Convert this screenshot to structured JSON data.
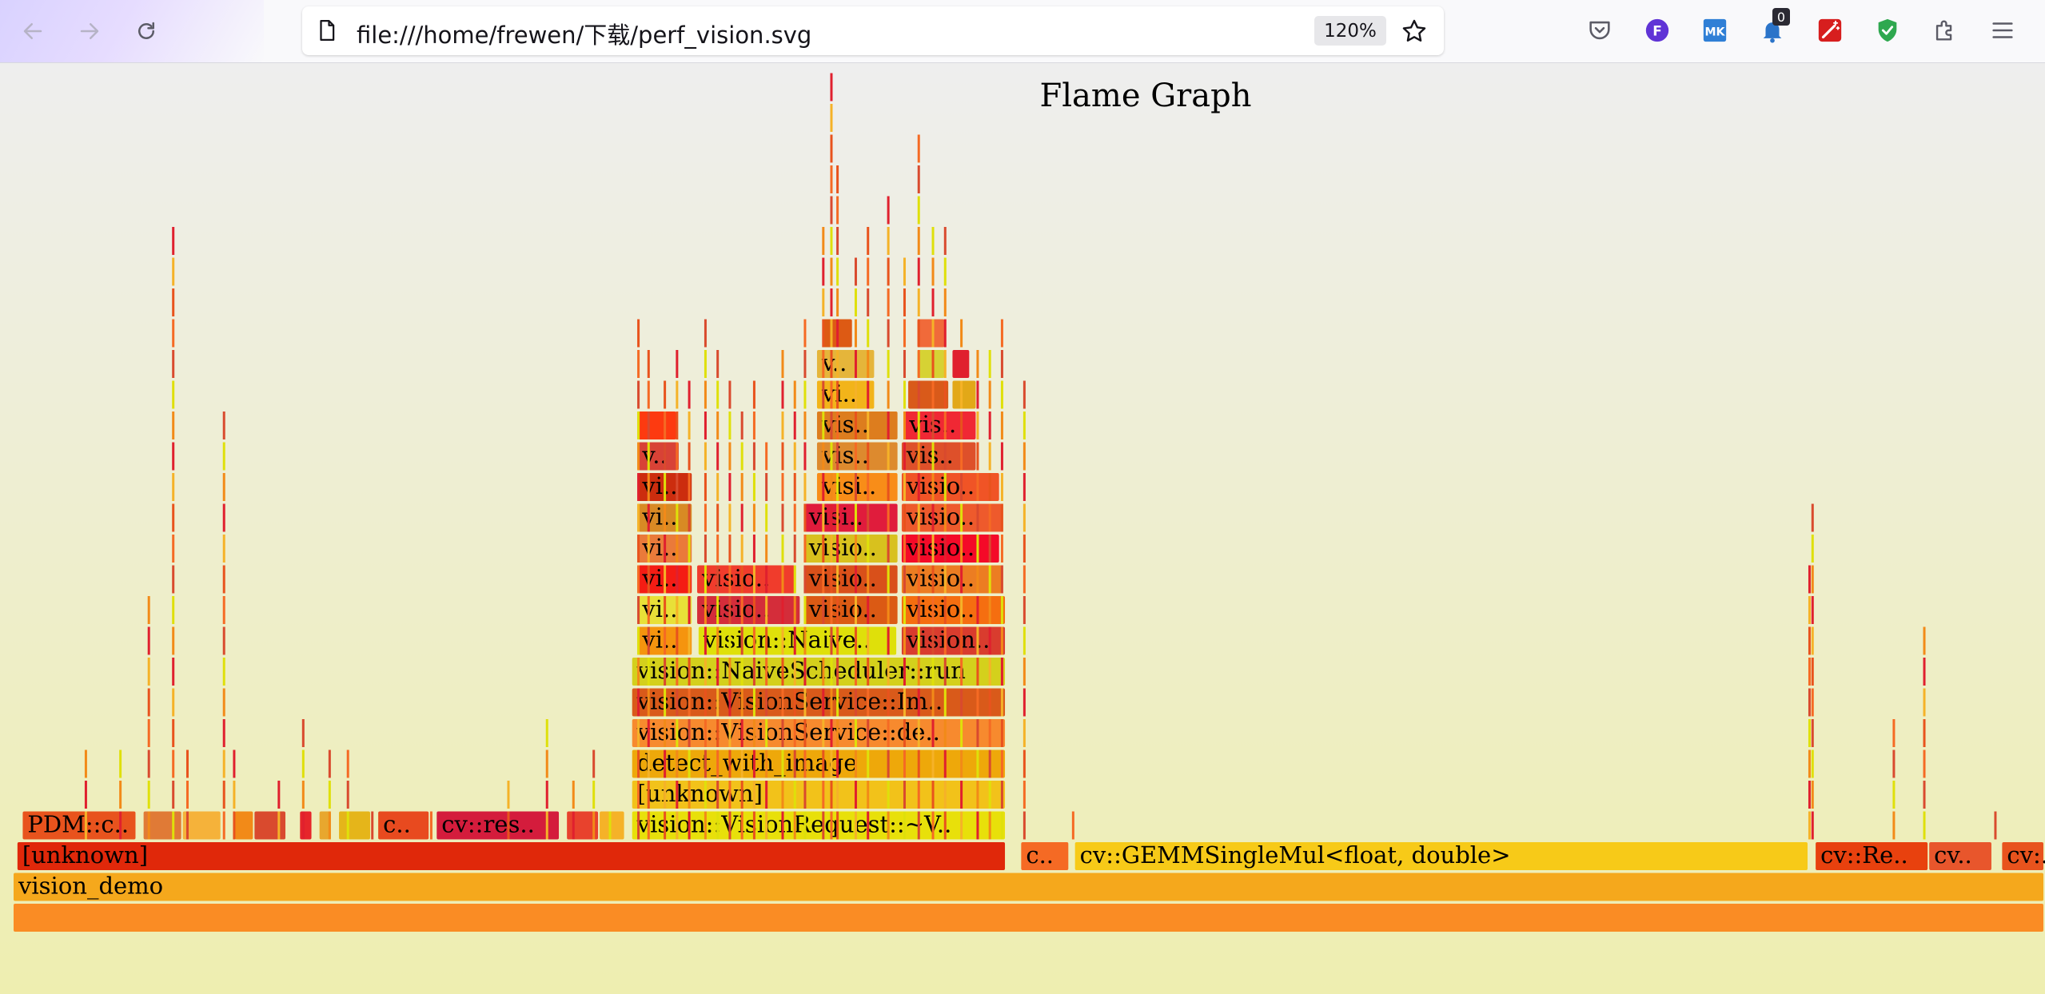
{
  "browser": {
    "url": "file:///home/frewen/下载/perf_vision.svg",
    "zoom": "120%",
    "notification_count": "0",
    "back_icon": "back-arrow-icon",
    "forward_icon": "forward-arrow-icon",
    "reload_icon": "reload-icon",
    "page_icon": "page-icon",
    "bookmark_icon": "star-icon",
    "toolbar_icons": [
      "pocket-icon",
      "firefox-account-icon",
      "extension-mk-icon",
      "notification-icon",
      "magic-wand-icon",
      "shield-check-icon",
      "extensions-puzzle-icon",
      "menu-icon"
    ],
    "colors": {
      "firefox_account": "#6034d6",
      "mk": "#2f7fd6",
      "notification": "#2b74c9",
      "wand": "#d71e1e",
      "shield": "#2fa84f"
    }
  },
  "flamegraph": {
    "title": "Flame Graph",
    "frames": [
      {
        "label": "",
        "row": 0,
        "start": 0.0,
        "end": 1.0,
        "color": "#fa8c24"
      },
      {
        "label": "vision_demo",
        "row": 1,
        "start": 0.0,
        "end": 1.0,
        "color": "#f5a81c"
      },
      {
        "label": "[unknown]",
        "row": 2,
        "start": 0.0019,
        "end": 0.4888,
        "color": "#e0280a"
      },
      {
        "label": "c..",
        "row": 2,
        "start": 0.496,
        "end": 0.52,
        "color": "#f56a24"
      },
      {
        "label": "cv::GEMMSingleMul<float, double>",
        "row": 2,
        "start": 0.5225,
        "end": 0.8839,
        "color": "#f7ca18"
      },
      {
        "label": "cv::Re..",
        "row": 2,
        "start": 0.8871,
        "end": 0.943,
        "color": "#e8410e"
      },
      {
        "label": "cv..",
        "row": 2,
        "start": 0.943,
        "end": 0.9744,
        "color": "#e8562c"
      },
      {
        "label": "cv:..",
        "row": 2,
        "start": 0.9789,
        "end": 1.0,
        "color": "#e8531d"
      },
      {
        "label": "PDM::c..",
        "row": 3,
        "start": 0.0045,
        "end": 0.0608,
        "color": "#e8531d"
      },
      {
        "label": "",
        "row": 3,
        "start": 0.064,
        "end": 0.0833,
        "color": "#e07a36"
      },
      {
        "label": "",
        "row": 3,
        "start": 0.0833,
        "end": 0.1026,
        "color": "#f5b23a"
      },
      {
        "label": "",
        "row": 3,
        "start": 0.109,
        "end": 0.1186,
        "color": "#f28a18"
      },
      {
        "label": "",
        "row": 3,
        "start": 0.1186,
        "end": 0.1346,
        "color": "#d94a2e"
      },
      {
        "label": "",
        "row": 3,
        "start": 0.141,
        "end": 0.1474,
        "color": "#e6262b"
      },
      {
        "label": "",
        "row": 3,
        "start": 0.1506,
        "end": 0.157,
        "color": "#e8a72e"
      },
      {
        "label": "",
        "row": 3,
        "start": 0.1602,
        "end": 0.1763,
        "color": "#e5b51a"
      },
      {
        "label": "c..",
        "row": 3,
        "start": 0.1795,
        "end": 0.2051,
        "color": "#e84a1f"
      },
      {
        "label": "cv::res..",
        "row": 3,
        "start": 0.2083,
        "end": 0.2692,
        "color": "#d41c3c"
      },
      {
        "label": "",
        "row": 3,
        "start": 0.2724,
        "end": 0.2885,
        "color": "#e8422d"
      },
      {
        "label": "",
        "row": 3,
        "start": 0.2885,
        "end": 0.3013,
        "color": "#f5b228"
      },
      {
        "label": "vision::VisionRequest::~V..",
        "row": 3,
        "start": 0.3045,
        "end": 0.4888,
        "color": "#e8e00a"
      },
      {
        "label": "[unknown]",
        "row": 4,
        "start": 0.3045,
        "end": 0.4888,
        "color": "#f2c21a"
      },
      {
        "label": "detect_with_image",
        "row": 5,
        "start": 0.3045,
        "end": 0.4888,
        "color": "#eea80a"
      },
      {
        "label": "vision::VisionService::de..",
        "row": 6,
        "start": 0.3045,
        "end": 0.4888,
        "color": "#f78a2e"
      },
      {
        "label": "vision::VisionService::Im..",
        "row": 7,
        "start": 0.3045,
        "end": 0.4888,
        "color": "#d95a1a"
      },
      {
        "label": "vision::NaiveScheduler::run",
        "row": 8,
        "start": 0.3045,
        "end": 0.4888,
        "color": "#d4d01c"
      },
      {
        "label": "vi..",
        "row": 9,
        "start": 0.3071,
        "end": 0.3346,
        "color": "#f5940e"
      },
      {
        "label": "vision::Naive..",
        "row": 9,
        "start": 0.3372,
        "end": 0.4353,
        "color": "#dfe00a"
      },
      {
        "label": "vision..",
        "row": 9,
        "start": 0.4372,
        "end": 0.4888,
        "color": "#d93c2e"
      },
      {
        "label": "vi..",
        "row": 10,
        "start": 0.3071,
        "end": 0.3346,
        "color": "#e8e038"
      },
      {
        "label": "visio..",
        "row": 10,
        "start": 0.3365,
        "end": 0.3878,
        "color": "#d42d3a"
      },
      {
        "label": "visio..",
        "row": 10,
        "start": 0.3891,
        "end": 0.4359,
        "color": "#db5a14"
      },
      {
        "label": "visio..",
        "row": 10,
        "start": 0.4372,
        "end": 0.4888,
        "color": "#f56e10"
      },
      {
        "label": "vi..",
        "row": 11,
        "start": 0.3071,
        "end": 0.3346,
        "color": "#f41c14"
      },
      {
        "label": "visio..",
        "row": 11,
        "start": 0.3365,
        "end": 0.3859,
        "color": "#f03c2c"
      },
      {
        "label": "visio..",
        "row": 11,
        "start": 0.3891,
        "end": 0.4359,
        "color": "#d9501a"
      },
      {
        "label": "visio..",
        "row": 11,
        "start": 0.4372,
        "end": 0.4873,
        "color": "#ec7d22"
      },
      {
        "label": "vi..",
        "row": 12,
        "start": 0.3071,
        "end": 0.3346,
        "color": "#ea7a3a"
      },
      {
        "label": "visio..",
        "row": 12,
        "start": 0.3891,
        "end": 0.4359,
        "color": "#d8c11e"
      },
      {
        "label": "visio..",
        "row": 12,
        "start": 0.4372,
        "end": 0.4859,
        "color": "#f40a28"
      },
      {
        "label": "vi..",
        "row": 13,
        "start": 0.3071,
        "end": 0.3346,
        "color": "#d88a24"
      },
      {
        "label": "visi..",
        "row": 13,
        "start": 0.3891,
        "end": 0.4359,
        "color": "#e01c3c"
      },
      {
        "label": "visio..",
        "row": 13,
        "start": 0.4372,
        "end": 0.4873,
        "color": "#ee5a2c"
      },
      {
        "label": "vi..",
        "row": 14,
        "start": 0.3071,
        "end": 0.3346,
        "color": "#cc2d0e"
      },
      {
        "label": "visi..",
        "row": 14,
        "start": 0.3955,
        "end": 0.4359,
        "color": "#f88d18"
      },
      {
        "label": "visio..",
        "row": 14,
        "start": 0.4372,
        "end": 0.4859,
        "color": "#f05426"
      },
      {
        "label": "v..",
        "row": 15,
        "start": 0.3071,
        "end": 0.3282,
        "color": "#d84236"
      },
      {
        "label": "vis..",
        "row": 15,
        "start": 0.3955,
        "end": 0.4359,
        "color": "#dd8a2e"
      },
      {
        "label": "vis..",
        "row": 15,
        "start": 0.4372,
        "end": 0.4744,
        "color": "#de502a"
      },
      {
        "label": "",
        "row": 16,
        "start": 0.3071,
        "end": 0.3269,
        "color": "#fd3a10"
      },
      {
        "label": "vis..",
        "row": 16,
        "start": 0.3955,
        "end": 0.4359,
        "color": "#dd7d1e"
      },
      {
        "label": "vis..",
        "row": 16,
        "start": 0.4385,
        "end": 0.4744,
        "color": "#f02834"
      },
      {
        "label": "vi..",
        "row": 17,
        "start": 0.3955,
        "end": 0.4244,
        "color": "#f2b41a"
      },
      {
        "label": "",
        "row": 17,
        "start": 0.4404,
        "end": 0.4609,
        "color": "#d95a1a"
      },
      {
        "label": "",
        "row": 17,
        "start": 0.4622,
        "end": 0.4744,
        "color": "#e2a818"
      },
      {
        "label": "v..",
        "row": 18,
        "start": 0.3955,
        "end": 0.4244,
        "color": "#e5b53a"
      },
      {
        "label": "",
        "row": 18,
        "start": 0.4449,
        "end": 0.459,
        "color": "#d6d234"
      },
      {
        "label": "",
        "row": 18,
        "start": 0.4622,
        "end": 0.4712,
        "color": "#e0202e"
      },
      {
        "label": "",
        "row": 19,
        "start": 0.3981,
        "end": 0.4135,
        "color": "#dd5a14"
      },
      {
        "label": "",
        "row": 19,
        "start": 0.4449,
        "end": 0.459,
        "color": "#f06a3a"
      }
    ]
  }
}
